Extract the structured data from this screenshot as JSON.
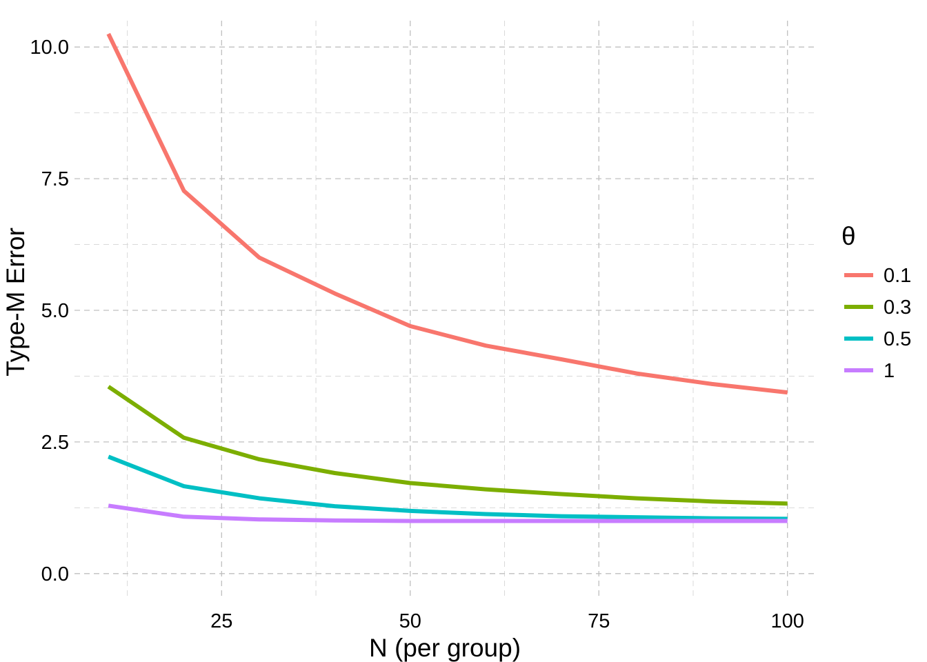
{
  "chart_data": {
    "type": "line",
    "xlabel": "N (per group)",
    "ylabel": "Type-M Error",
    "legend_title": "θ",
    "legend_position": "right",
    "grid": "dashed",
    "xlim": [
      5.5,
      103.5
    ],
    "ylim": [
      -0.5,
      10.5
    ],
    "x_ticks": [
      25,
      50,
      75,
      100
    ],
    "x_tick_labels": [
      "25",
      "50",
      "75",
      "100"
    ],
    "y_ticks": [
      0,
      2.5,
      5,
      7.5,
      10
    ],
    "y_tick_labels": [
      "0.0",
      "2.5",
      "5.0",
      "7.5",
      "10.0"
    ],
    "x": [
      10,
      20,
      30,
      40,
      50,
      60,
      70,
      80,
      90,
      100
    ],
    "series": [
      {
        "name": "0.1",
        "color": "#F8766D",
        "values": [
          10.25,
          7.27,
          6.0,
          5.32,
          4.7,
          4.33,
          4.07,
          3.8,
          3.6,
          3.44
        ]
      },
      {
        "name": "0.3",
        "color": "#7CAE00",
        "values": [
          3.55,
          2.58,
          2.17,
          1.91,
          1.72,
          1.6,
          1.51,
          1.43,
          1.37,
          1.33
        ]
      },
      {
        "name": "0.5",
        "color": "#00BFC4",
        "values": [
          2.22,
          1.66,
          1.43,
          1.28,
          1.19,
          1.13,
          1.09,
          1.07,
          1.05,
          1.04
        ]
      },
      {
        "name": "1",
        "color": "#C77CFF",
        "values": [
          1.29,
          1.08,
          1.03,
          1.01,
          1.0,
          1.0,
          1.0,
          1.0,
          1.0,
          1.0
        ]
      }
    ]
  }
}
